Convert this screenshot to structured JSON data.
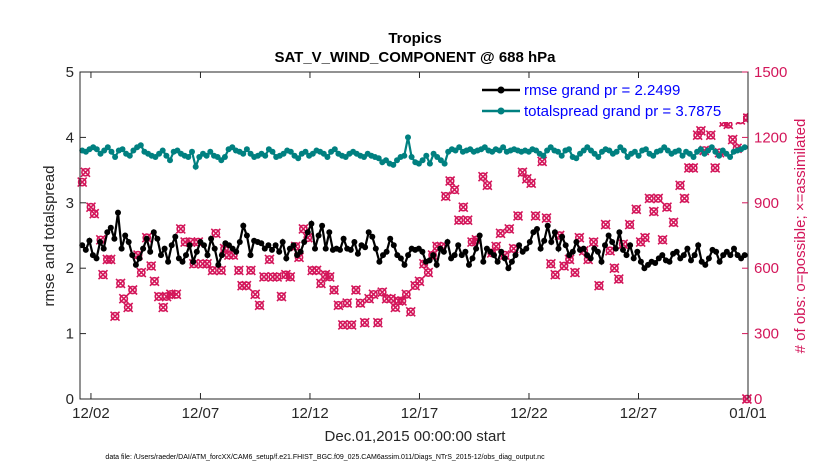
{
  "chart_data": {
    "type": "line",
    "title": "Tropics",
    "subtitle": "SAT_V_WIND_COMPONENT @ 688 hPa",
    "xlabel": "Dec.01,2015 00:00:00 start",
    "ylabel": "rmse and totalspread",
    "ylabel_right": "# of obs: o=possible; ×=assimilated",
    "ylim": [
      0,
      5
    ],
    "ylim_right": [
      0,
      1500
    ],
    "xlim_days": [
      0.5,
      31
    ],
    "yticks": [
      "0",
      "1",
      "2",
      "3",
      "4",
      "5"
    ],
    "yticks_right": [
      "0",
      "300",
      "600",
      "900",
      "1200",
      "1500"
    ],
    "xticks": [
      {
        "day": 1,
        "label": "12/02"
      },
      {
        "day": 6,
        "label": "12/07"
      },
      {
        "day": 11,
        "label": "12/12"
      },
      {
        "day": 16,
        "label": "12/17"
      },
      {
        "day": 21,
        "label": "12/22"
      },
      {
        "day": 26,
        "label": "12/27"
      },
      {
        "day": 31,
        "label": "01/01"
      }
    ],
    "grid": false,
    "legend_position": "top-right",
    "series": [
      {
        "name": "rmse grand pr = 2.2499",
        "color": "#000000",
        "axis": "left",
        "marker": "circle",
        "values": [
          2.35,
          2.28,
          2.42,
          2.2,
          2.15,
          2.4,
          2.3,
          2.55,
          2.62,
          2.45,
          2.85,
          2.3,
          2.5,
          2.4,
          2.2,
          2.05,
          2.15,
          2.3,
          2.45,
          2.25,
          2.55,
          2.45,
          2.2,
          2.3,
          2.1,
          2.35,
          2.48,
          2.15,
          2.1,
          2.2,
          2.35,
          2.1,
          2.25,
          2.4,
          2.35,
          2.2,
          2.45,
          2.3,
          2.05,
          2.2,
          2.38,
          2.35,
          2.3,
          2.25,
          2.4,
          2.65,
          2.5,
          2.2,
          2.42,
          2.4,
          2.38,
          2.3,
          2.35,
          2.28,
          2.35,
          2.25,
          2.4,
          2.15,
          2.3,
          2.35,
          2.2,
          2.25,
          2.4,
          2.55,
          2.68,
          2.3,
          2.5,
          2.65,
          2.3,
          2.55,
          2.28,
          2.3,
          2.28,
          2.45,
          2.3,
          2.28,
          2.4,
          2.22,
          2.35,
          2.32,
          2.55,
          2.48,
          2.3,
          2.1,
          2.2,
          2.25,
          2.45,
          2.35,
          2.2,
          2.15,
          2.05,
          2.2,
          2.3,
          2.28,
          2.3,
          2.25,
          2.1,
          2.12,
          2.2,
          2.05,
          2.3,
          2.25,
          2.4,
          2.15,
          2.2,
          2.35,
          2.2,
          2.25,
          2.05,
          2.15,
          2.3,
          2.5,
          2.1,
          2.3,
          2.25,
          2.2,
          2.1,
          2.25,
          2.15,
          2.0,
          2.1,
          2.2,
          2.35,
          2.25,
          2.3,
          2.4,
          2.55,
          2.6,
          2.3,
          2.42,
          2.65,
          2.4,
          2.55,
          2.3,
          2.48,
          2.35,
          2.2,
          2.25,
          2.4,
          2.28,
          2.3,
          2.2,
          2.15,
          2.3,
          2.25,
          2.1,
          2.35,
          2.5,
          2.4,
          2.3,
          2.55,
          2.28,
          2.2,
          2.35,
          2.15,
          2.25,
          2.1,
          2.0,
          2.05,
          2.1,
          2.08,
          2.15,
          2.2,
          2.12,
          2.1,
          2.22,
          2.25,
          2.15,
          2.2,
          2.3,
          2.12,
          2.2,
          2.35,
          2.1,
          2.05,
          2.15,
          2.28,
          2.25,
          2.1,
          2.2,
          2.25,
          2.2,
          2.3,
          2.2,
          2.15,
          2.2
        ],
        "values_note": "every 4th value shown is one 6-hourly analysis starting 12/01"
      },
      {
        "name": "totalspread grand pr = 3.7875",
        "color": "#008080",
        "axis": "left",
        "marker": "circle",
        "values": [
          3.8,
          3.78,
          3.82,
          3.85,
          3.82,
          3.75,
          3.8,
          3.85,
          3.78,
          3.7,
          3.8,
          3.82,
          3.75,
          3.72,
          3.8,
          3.85,
          3.88,
          3.78,
          3.75,
          3.72,
          3.7,
          3.75,
          3.8,
          3.72,
          3.65,
          3.78,
          3.8,
          3.75,
          3.72,
          3.7,
          3.78,
          3.55,
          3.7,
          3.75,
          3.72,
          3.78,
          3.72,
          3.7,
          3.65,
          3.7,
          3.82,
          3.85,
          3.8,
          3.78,
          3.75,
          3.82,
          3.75,
          3.7,
          3.72,
          3.75,
          3.72,
          3.82,
          3.78,
          3.7,
          3.72,
          3.75,
          3.8,
          3.78,
          3.72,
          3.68,
          3.75,
          3.78,
          3.72,
          3.75,
          3.8,
          3.78,
          3.75,
          3.7,
          3.78,
          3.82,
          3.75,
          3.72,
          3.7,
          3.75,
          3.78,
          3.75,
          3.72,
          3.7,
          3.75,
          3.72,
          3.7,
          3.68,
          3.62,
          3.65,
          3.6,
          3.58,
          3.65,
          3.7,
          3.72,
          4.0,
          3.7,
          3.62,
          3.6,
          3.65,
          3.72,
          3.6,
          3.75,
          3.7,
          3.65,
          3.6,
          3.78,
          3.82,
          3.8,
          3.85,
          3.78,
          3.8,
          3.82,
          3.78,
          3.8,
          3.82,
          3.85,
          3.8,
          3.78,
          3.82,
          3.8,
          3.85,
          3.78,
          3.8,
          3.82,
          3.8,
          3.78,
          3.8,
          3.78,
          3.82,
          3.8,
          3.75,
          3.72,
          3.8,
          3.85,
          3.8,
          3.78,
          3.72,
          3.8,
          3.82,
          3.7,
          3.68,
          3.75,
          3.8,
          3.85,
          3.8,
          3.75,
          3.7,
          3.78,
          3.82,
          3.8,
          3.75,
          3.78,
          3.85,
          3.8,
          3.7,
          3.75,
          3.78,
          3.72,
          3.8,
          3.82,
          3.75,
          3.72,
          3.78,
          3.8,
          3.85,
          3.8,
          3.75,
          3.78,
          3.8,
          3.72,
          3.78,
          3.75,
          3.7,
          3.78,
          3.82,
          3.75,
          3.8,
          3.85,
          3.78,
          3.72,
          3.8,
          3.75,
          3.7,
          3.78,
          3.8,
          3.82,
          3.85
        ],
        "values_note": "every 4th value shown is one 6-hourly analysis starting 12/01"
      },
      {
        "name": "# of obs possible / assimilated",
        "color": "#d3165a",
        "axis": "right",
        "marker": "circle-x",
        "points": [
          [
            0.6,
            995
          ],
          [
            0.75,
            1040
          ],
          [
            1.0,
            880
          ],
          [
            1.15,
            850
          ],
          [
            1.45,
            730
          ],
          [
            1.55,
            570
          ],
          [
            1.75,
            640
          ],
          [
            1.9,
            640
          ],
          [
            2.1,
            380
          ],
          [
            2.35,
            530
          ],
          [
            2.5,
            460
          ],
          [
            2.7,
            420
          ],
          [
            2.9,
            500
          ],
          [
            3.15,
            660
          ],
          [
            3.3,
            580
          ],
          [
            3.55,
            740
          ],
          [
            3.75,
            610
          ],
          [
            3.9,
            540
          ],
          [
            4.1,
            470
          ],
          [
            4.3,
            420
          ],
          [
            4.45,
            470
          ],
          [
            4.65,
            480
          ],
          [
            4.9,
            480
          ],
          [
            5.1,
            780
          ],
          [
            5.3,
            720
          ],
          [
            5.55,
            720
          ],
          [
            5.7,
            620
          ],
          [
            5.9,
            720
          ],
          [
            6.1,
            620
          ],
          [
            6.3,
            620
          ],
          [
            6.55,
            590
          ],
          [
            6.7,
            760
          ],
          [
            6.95,
            590
          ],
          [
            7.1,
            690
          ],
          [
            7.3,
            660
          ],
          [
            7.5,
            660
          ],
          [
            7.75,
            590
          ],
          [
            7.9,
            520
          ],
          [
            8.1,
            520
          ],
          [
            8.3,
            590
          ],
          [
            8.5,
            480
          ],
          [
            8.7,
            430
          ],
          [
            8.9,
            560
          ],
          [
            9.15,
            640
          ],
          [
            9.3,
            560
          ],
          [
            9.5,
            560
          ],
          [
            9.7,
            470
          ],
          [
            9.9,
            570
          ],
          [
            10.1,
            560
          ],
          [
            10.35,
            700
          ],
          [
            10.5,
            650
          ],
          [
            10.7,
            780
          ],
          [
            10.9,
            740
          ],
          [
            11.1,
            590
          ],
          [
            11.3,
            590
          ],
          [
            11.5,
            530
          ],
          [
            11.7,
            570
          ],
          [
            11.9,
            560
          ],
          [
            12.1,
            500
          ],
          [
            12.3,
            430
          ],
          [
            12.5,
            340
          ],
          [
            12.7,
            440
          ],
          [
            12.9,
            340
          ],
          [
            13.1,
            500
          ],
          [
            13.3,
            440
          ],
          [
            13.5,
            350
          ],
          [
            13.7,
            460
          ],
          [
            13.9,
            480
          ],
          [
            14.1,
            350
          ],
          [
            14.3,
            490
          ],
          [
            14.5,
            460
          ],
          [
            14.7,
            460
          ],
          [
            14.9,
            420
          ],
          [
            15.05,
            450
          ],
          [
            15.2,
            450
          ],
          [
            15.4,
            480
          ],
          [
            15.6,
            400
          ],
          [
            15.8,
            520
          ],
          [
            16.0,
            540
          ],
          [
            16.2,
            620
          ],
          [
            16.4,
            580
          ],
          [
            16.6,
            660
          ],
          [
            16.8,
            700
          ],
          [
            17.0,
            700
          ],
          [
            17.2,
            930
          ],
          [
            17.4,
            1000
          ],
          [
            17.6,
            960
          ],
          [
            17.8,
            820
          ],
          [
            18.0,
            880
          ],
          [
            18.2,
            820
          ],
          [
            18.4,
            720
          ],
          [
            18.6,
            730
          ],
          [
            18.9,
            1020
          ],
          [
            19.1,
            980
          ],
          [
            19.3,
            670
          ],
          [
            19.5,
            700
          ],
          [
            19.7,
            760
          ],
          [
            19.9,
            660
          ],
          [
            20.1,
            780
          ],
          [
            20.3,
            690
          ],
          [
            20.5,
            840
          ],
          [
            20.7,
            1040
          ],
          [
            20.9,
            1010
          ],
          [
            21.1,
            990
          ],
          [
            21.3,
            840
          ],
          [
            21.6,
            1090
          ],
          [
            21.8,
            830
          ],
          [
            22.0,
            620
          ],
          [
            22.2,
            570
          ],
          [
            22.4,
            750
          ],
          [
            22.6,
            610
          ],
          [
            22.85,
            640
          ],
          [
            23.1,
            580
          ],
          [
            23.3,
            740
          ],
          [
            23.5,
            680
          ],
          [
            23.7,
            640
          ],
          [
            23.95,
            720
          ],
          [
            24.2,
            520
          ],
          [
            24.5,
            800
          ],
          [
            24.7,
            680
          ],
          [
            24.9,
            600
          ],
          [
            25.1,
            550
          ],
          [
            25.3,
            710
          ],
          [
            25.6,
            800
          ],
          [
            25.9,
            870
          ],
          [
            26.1,
            720
          ],
          [
            26.3,
            740
          ],
          [
            26.5,
            920
          ],
          [
            26.7,
            860
          ],
          [
            26.9,
            920
          ],
          [
            27.1,
            730
          ],
          [
            27.3,
            880
          ],
          [
            27.6,
            810
          ],
          [
            27.9,
            980
          ],
          [
            28.1,
            920
          ],
          [
            28.3,
            1060
          ],
          [
            28.5,
            1060
          ],
          [
            28.7,
            1210
          ],
          [
            28.85,
            1230
          ],
          [
            29.0,
            1140
          ],
          [
            29.3,
            1210
          ],
          [
            29.5,
            1060
          ],
          [
            29.7,
            1130
          ],
          [
            29.9,
            1270
          ],
          [
            30.1,
            1260
          ],
          [
            30.3,
            1190
          ],
          [
            30.5,
            1150
          ],
          [
            30.65,
            1280
          ],
          [
            30.8,
            1290
          ],
          [
            30.95,
            0
          ]
        ]
      }
    ],
    "legend": [
      {
        "label": "rmse grand pr = 2.2499",
        "color": "#000000"
      },
      {
        "label": "totalspread grand pr = 3.7875",
        "color": "#008080"
      }
    ],
    "footnote": "data file: /Users/raeder/DAI/ATM_forcXX/CAM6_setup/f.e21.FHIST_BGC.f09_025.CAM6assim.011/Diags_NTrS_2015-12/obs_diag_output.nc"
  }
}
